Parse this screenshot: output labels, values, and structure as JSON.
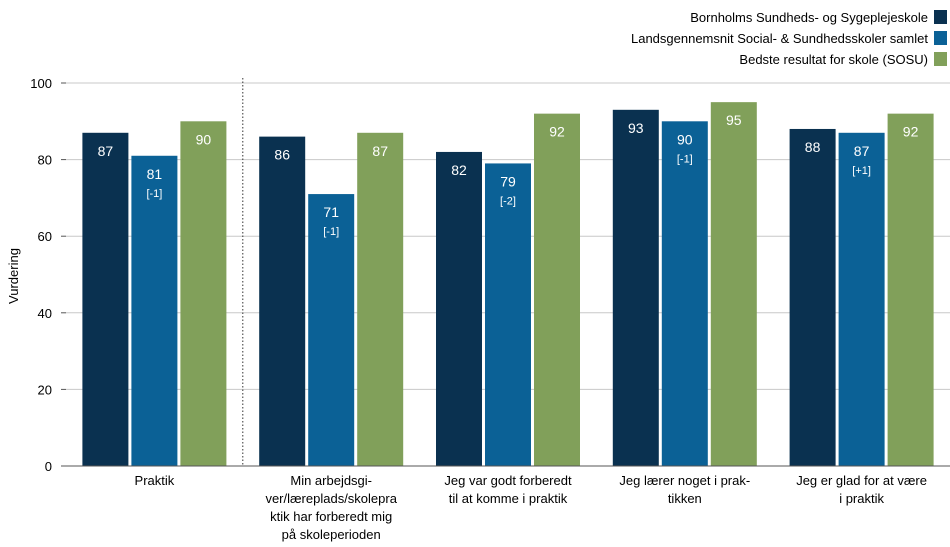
{
  "chart_data": {
    "type": "bar",
    "ylabel": "Vurdering",
    "ylim": [
      0,
      100
    ],
    "yticks": [
      0,
      20,
      40,
      60,
      80,
      100
    ],
    "grid": true,
    "legend_position": "top-right",
    "categories": [
      [
        "Praktik"
      ],
      [
        "Min arbejdsgi-",
        "ver/læreplads/skolepra",
        "ktik har forberedt mig",
        "på skoleperioden"
      ],
      [
        "Jeg var godt forberedt",
        "til at komme i praktik"
      ],
      [
        "Jeg lærer noget i prak-",
        "tikken"
      ],
      [
        "Jeg er glad for at være",
        "i praktik"
      ]
    ],
    "series": [
      {
        "name": "Bornholms Sundheds- og Sygeplejeskole",
        "color": "#0a3150",
        "values": [
          87,
          86,
          82,
          93,
          88
        ],
        "notes": [
          "",
          "",
          "",
          "",
          ""
        ]
      },
      {
        "name": "Landsgennemsnit Social- & Sundhedsskoler samlet",
        "color": "#0b6196",
        "values": [
          81,
          71,
          79,
          90,
          87
        ],
        "notes": [
          "[-1]",
          "[-1]",
          "[-2]",
          "[-1]",
          "[+1]"
        ]
      },
      {
        "name": "Bedste resultat for skole (SOSU)",
        "color": "#81a05a",
        "values": [
          90,
          87,
          92,
          95,
          92
        ],
        "notes": [
          "",
          "",
          "",
          "",
          ""
        ]
      }
    ],
    "value_labels": [
      [
        "87",
        "86",
        "82",
        "93",
        "88"
      ],
      [
        "81",
        "71",
        "79",
        "90",
        "87"
      ],
      [
        "90",
        "87",
        "92",
        "95",
        "92"
      ]
    ],
    "gridline_color": "#c8c8c8",
    "separator_after_category": 0
  }
}
